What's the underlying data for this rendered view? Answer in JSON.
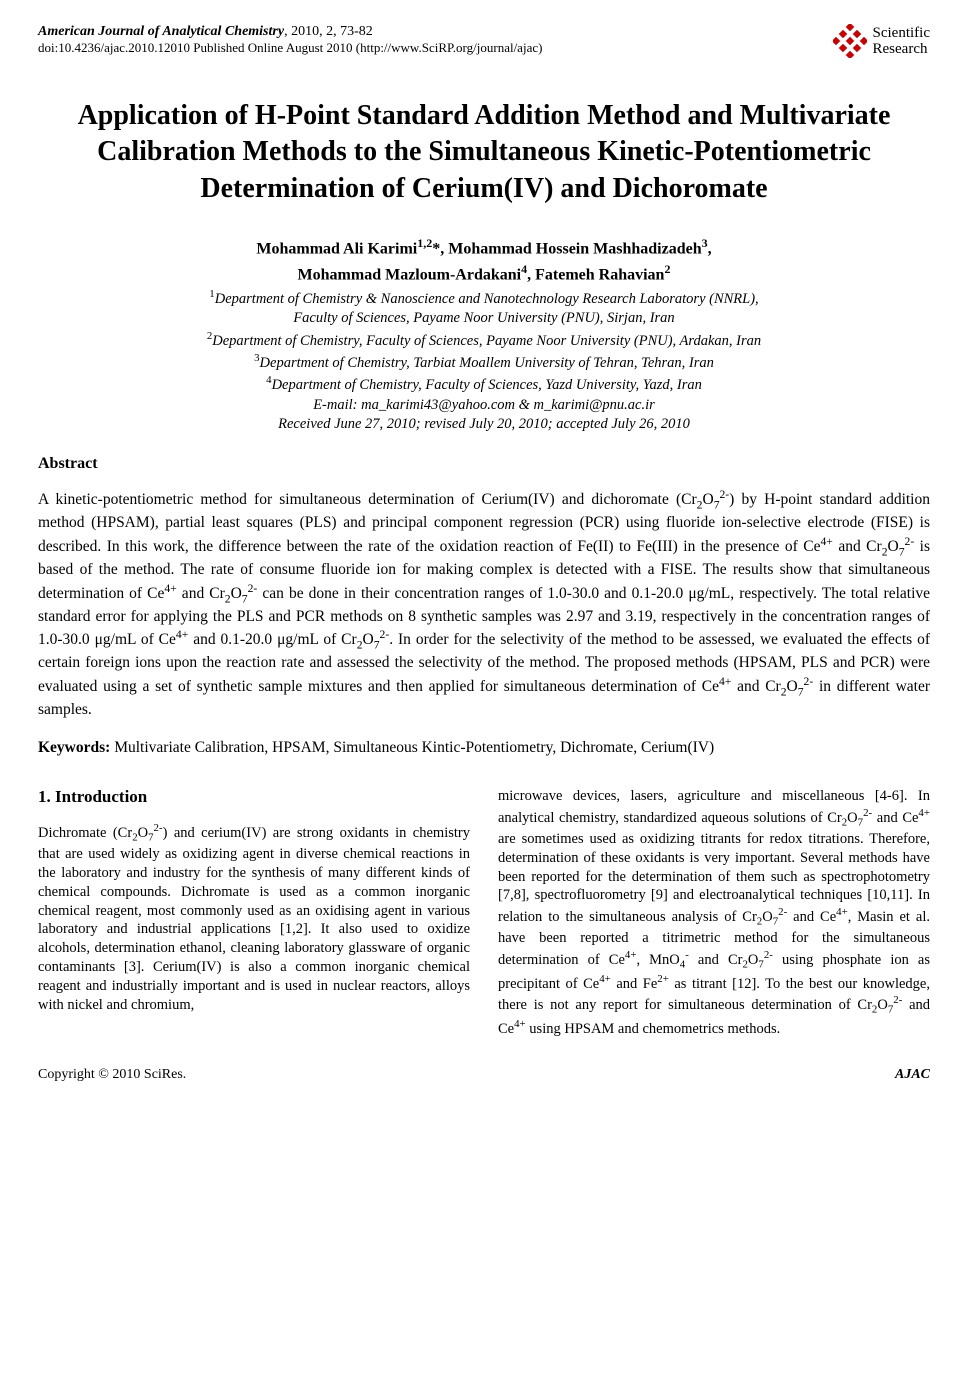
{
  "header": {
    "journal_name": "American Journal of Analytical Chemistry",
    "issue": ", 2010, 2, 73-82",
    "doi_line": "doi:10.4236/ajac.2010.12010 Published Online August 2010 (http://www.SciRP.org/journal/ajac)",
    "publisher_top": "Scientific",
    "publisher_bottom": "Research",
    "logo_diamond_color": "#cc0000"
  },
  "title": "Application of H-Point Standard Addition Method and Multivariate Calibration Methods to the Simultaneous Kinetic-Potentiometric Determination of Cerium(IV) and Dichoromate",
  "authors_line1_html": "Mohammad Ali Karimi<sup>1,2</sup>*, Mohammad Hossein Mashhadizadeh<sup>3</sup>,",
  "authors_line2_html": "Mohammad Mazloum-Ardakani<sup>4</sup>, Fatemeh Rahavian<sup>2</sup>",
  "affiliations": [
    "<sup>1</sup>Department of Chemistry & Nanoscience and Nanotechnology Research Laboratory (NNRL),",
    "Faculty of Sciences, Payame Noor University (PNU), Sirjan, Iran",
    "<sup>2</sup>Department of Chemistry, Faculty of Sciences, Payame Noor University (PNU), Ardakan, Iran",
    "<sup>3</sup>Department of Chemistry, Tarbiat Moallem University of Tehran, Tehran, Iran",
    "<sup>4</sup>Department of Chemistry, Faculty of Sciences, Yazd University, Yazd, Iran",
    "E-mail: ma_karimi43@yahoo.com & m_karimi@pnu.ac.ir",
    "Received June 27, 2010; revised July 20, 2010; accepted July 26, 2010"
  ],
  "abstract_heading": "Abstract",
  "abstract_html": "A kinetic-potentiometric method for simultaneous determination of Cerium(IV) and dichoromate (Cr<sub>2</sub>O<sub>7</sub><sup>2-</sup>) by H-point standard addition method (HPSAM), partial least squares (PLS) and principal component regression (PCR) using fluoride ion-selective electrode (FISE) is described. In this work, the difference between the rate of the oxidation reaction of Fe(II) to Fe(III) in the presence of Ce<sup>4+</sup> and Cr<sub>2</sub>O<sub>7</sub><sup>2-</sup> is based of the method. The rate of consume fluoride ion for making complex is detected with a FISE. The results show that simultaneous determination of Ce<sup>4+</sup> and Cr<sub>2</sub>O<sub>7</sub><sup>2-</sup> can be done in their concentration ranges of 1.0-30.0 and 0.1-20.0 μg/mL, respectively. The total relative standard error for applying the PLS and PCR methods on 8 synthetic samples was 2.97 and 3.19, respectively in the concentration ranges of 1.0-30.0 μg/mL of Ce<sup>4+</sup> and 0.1-20.0 μg/mL of Cr<sub>2</sub>O<sub>7</sub><sup>2-</sup>. In order for the selectivity of the method to be assessed, we evaluated the effects of certain foreign ions upon the reaction rate and assessed the selectivity of the method. The proposed methods (HPSAM, PLS and PCR) were evaluated using a set of synthetic sample mixtures and then applied for simultaneous determination of Ce<sup>4+</sup> and Cr<sub>2</sub>O<sub>7</sub><sup>2-</sup> in different water samples.",
  "keywords_label": "Keywords:",
  "keywords_text": " Multivariate Calibration, HPSAM, Simultaneous Kintic-Potentiometry, Dichromate, Cerium(IV)",
  "intro_heading": "1. Introduction",
  "col1_html": "Dichromate (Cr<sub>2</sub>O<sub>7</sub><sup>2-</sup>) and cerium(IV) are strong oxidants in chemistry that are used widely as oxidizing agent in diverse chemical reactions in the laboratory and industry for the synthesis of many different kinds of chemical compounds. Dichromate is used as a common inorganic chemical reagent, most commonly used as an oxidising agent in various laboratory and industrial applications [1,2]. It also used to oxidize alcohols, determination ethanol, cleaning laboratory glassware of organic contaminants [3]. Cerium(IV) is also a common inorganic chemical reagent and industrially important and is used in nuclear reactors, alloys with nickel and chromium,",
  "col2_html": "microwave devices, lasers, agriculture and miscellaneous [4-6]. In analytical chemistry, standardized aqueous solutions of Cr<sub>2</sub>O<sub>7</sub><sup>2-</sup> and Ce<sup>4+</sup> are sometimes used as oxidizing titrants for redox titrations. Therefore, determination of these oxidants is very important. Several methods have been reported for the determination of them such as spectrophotometry [7,8], spectrofluorometry [9] and electroanalytical techniques [10,11]. In relation to the simultaneous analysis of Cr<sub>2</sub>O<sub>7</sub><sup>2-</sup> and Ce<sup>4+</sup>, Masin et al. have been reported a titrimetric method for the simultaneous determination of Ce<sup>4+</sup>, MnO<sub>4</sub><sup>-</sup> and Cr<sub>2</sub>O<sub>7</sub><sup>2-</sup> using phosphate ion as precipitant of Ce<sup>4+</sup> and Fe<sup>2+</sup> as titrant [12]. To the best our knowledge, there is not any report for simultaneous determination of Cr<sub>2</sub>O<sub>7</sub><sup>2-</sup> and Ce<sup>4+</sup> using HPSAM and chemometrics methods.",
  "footer": {
    "left": "Copyright © 2010 SciRes.",
    "right": "AJAC"
  }
}
